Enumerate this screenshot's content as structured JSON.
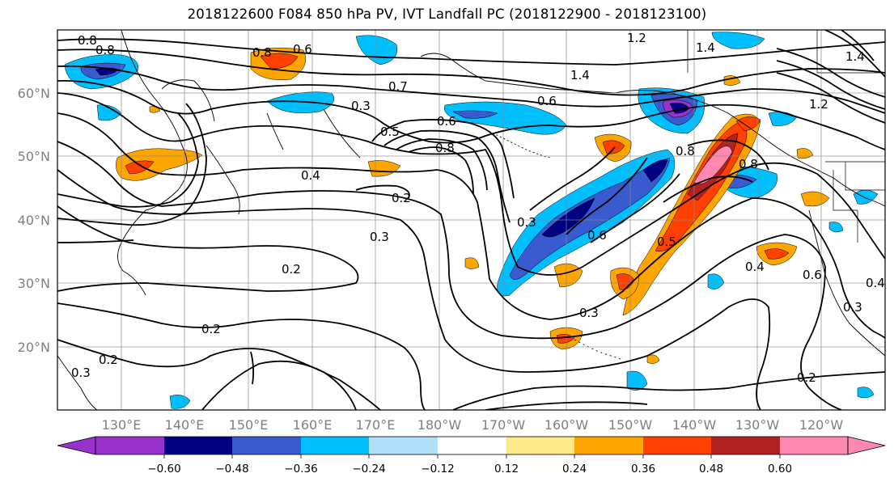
{
  "title": "2018122600 F084 850 hPa PV, IVT Landfall PC (2018122900 - 2018123100)",
  "map": {
    "lat_ticks": [
      "60°N",
      "50°N",
      "40°N",
      "30°N",
      "20°N"
    ],
    "lon_ticks": [
      "130°E",
      "140°E",
      "150°E",
      "160°E",
      "170°E",
      "180°W",
      "170°W",
      "160°W",
      "150°W",
      "140°W",
      "130°W",
      "120°W"
    ],
    "contour_labels": [
      "0.8",
      "0.8",
      "0.8",
      "0.6",
      "0.7",
      "0.3",
      "0.6",
      "0.5",
      "0.8",
      "0.6",
      "1.2",
      "1.4",
      "1.4",
      "1.2",
      "1.4",
      "0.4",
      "0.2",
      "0.3",
      "0.2",
      "0.2",
      "0.3",
      "0.3",
      "0.6",
      "0.5",
      "0.8",
      "0.8",
      "0.4",
      "0.6",
      "0.4",
      "0.3",
      "0.2",
      "0.2",
      "0.3"
    ]
  },
  "colorbar": {
    "ticks": [
      "−0.60",
      "−0.48",
      "−0.36",
      "−0.24",
      "−0.12",
      "0.12",
      "0.24",
      "0.36",
      "0.48",
      "0.60"
    ],
    "colors": [
      "#9932cc",
      "#000080",
      "#3a5bcf",
      "#00bfff",
      "#b0e0fa",
      "#ffffff",
      "#ffe98a",
      "#ffa500",
      "#ff4000",
      "#b22222",
      "#ff88b0"
    ]
  }
}
